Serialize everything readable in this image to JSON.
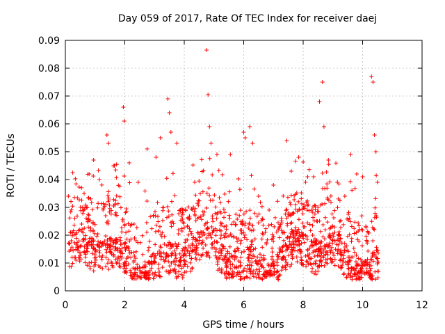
{
  "chart_data": {
    "type": "scatter",
    "title": "Day 059 of 2017, Rate Of TEC Index for receiver daej",
    "xlabel": "GPS time / hours",
    "ylabel": "ROTI / TECUs",
    "xlim": [
      0,
      12
    ],
    "ylim": [
      0,
      0.09
    ],
    "x_ticks": [
      0,
      2,
      4,
      6,
      8,
      10,
      12
    ],
    "x_tick_labels": [
      "0",
      "2",
      "4",
      "6",
      "8",
      "10",
      "12"
    ],
    "y_ticks": [
      0,
      0.01,
      0.02,
      0.03,
      0.04,
      0.05,
      0.06,
      0.07,
      0.08,
      0.09
    ],
    "y_tick_labels": [
      "0",
      "0.01",
      "0.02",
      "0.03",
      "0.04",
      "0.05",
      "0.06",
      "0.07",
      "0.08",
      "0.09"
    ],
    "grid": true,
    "marker": "plus",
    "color": "#ff0000",
    "data_x_range": [
      0.05,
      10.55
    ],
    "peaks": [
      {
        "x": 0.1,
        "y": 0.034
      },
      {
        "x": 0.55,
        "y": 0.024
      },
      {
        "x": 0.8,
        "y": 0.042
      },
      {
        "x": 0.95,
        "y": 0.047
      },
      {
        "x": 1.4,
        "y": 0.056
      },
      {
        "x": 1.45,
        "y": 0.053
      },
      {
        "x": 1.65,
        "y": 0.045
      },
      {
        "x": 1.95,
        "y": 0.066
      },
      {
        "x": 1.98,
        "y": 0.061
      },
      {
        "x": 2.15,
        "y": 0.046
      },
      {
        "x": 2.45,
        "y": 0.039
      },
      {
        "x": 2.75,
        "y": 0.051
      },
      {
        "x": 3.05,
        "y": 0.048
      },
      {
        "x": 3.2,
        "y": 0.055
      },
      {
        "x": 3.45,
        "y": 0.069
      },
      {
        "x": 3.5,
        "y": 0.064
      },
      {
        "x": 3.55,
        "y": 0.057
      },
      {
        "x": 3.75,
        "y": 0.053
      },
      {
        "x": 3.95,
        "y": 0.029
      },
      {
        "x": 4.35,
        "y": 0.039
      },
      {
        "x": 4.75,
        "y": 0.0865
      },
      {
        "x": 4.8,
        "y": 0.0705
      },
      {
        "x": 4.85,
        "y": 0.059
      },
      {
        "x": 4.9,
        "y": 0.053
      },
      {
        "x": 5.1,
        "y": 0.049
      },
      {
        "x": 5.55,
        "y": 0.049
      },
      {
        "x": 6.0,
        "y": 0.057
      },
      {
        "x": 6.05,
        "y": 0.055
      },
      {
        "x": 6.2,
        "y": 0.059
      },
      {
        "x": 6.3,
        "y": 0.053
      },
      {
        "x": 6.5,
        "y": 0.034
      },
      {
        "x": 7.0,
        "y": 0.038
      },
      {
        "x": 7.45,
        "y": 0.054
      },
      {
        "x": 7.6,
        "y": 0.043
      },
      {
        "x": 7.85,
        "y": 0.048
      },
      {
        "x": 8.15,
        "y": 0.041
      },
      {
        "x": 8.35,
        "y": 0.041
      },
      {
        "x": 8.55,
        "y": 0.068
      },
      {
        "x": 8.65,
        "y": 0.075
      },
      {
        "x": 8.7,
        "y": 0.059
      },
      {
        "x": 8.85,
        "y": 0.047
      },
      {
        "x": 9.15,
        "y": 0.039
      },
      {
        "x": 9.4,
        "y": 0.034
      },
      {
        "x": 9.6,
        "y": 0.049
      },
      {
        "x": 9.8,
        "y": 0.042
      },
      {
        "x": 10.0,
        "y": 0.041
      },
      {
        "x": 10.3,
        "y": 0.077
      },
      {
        "x": 10.35,
        "y": 0.075
      },
      {
        "x": 10.4,
        "y": 0.056
      },
      {
        "x": 10.45,
        "y": 0.05
      },
      {
        "x": 10.5,
        "y": 0.039
      }
    ]
  }
}
